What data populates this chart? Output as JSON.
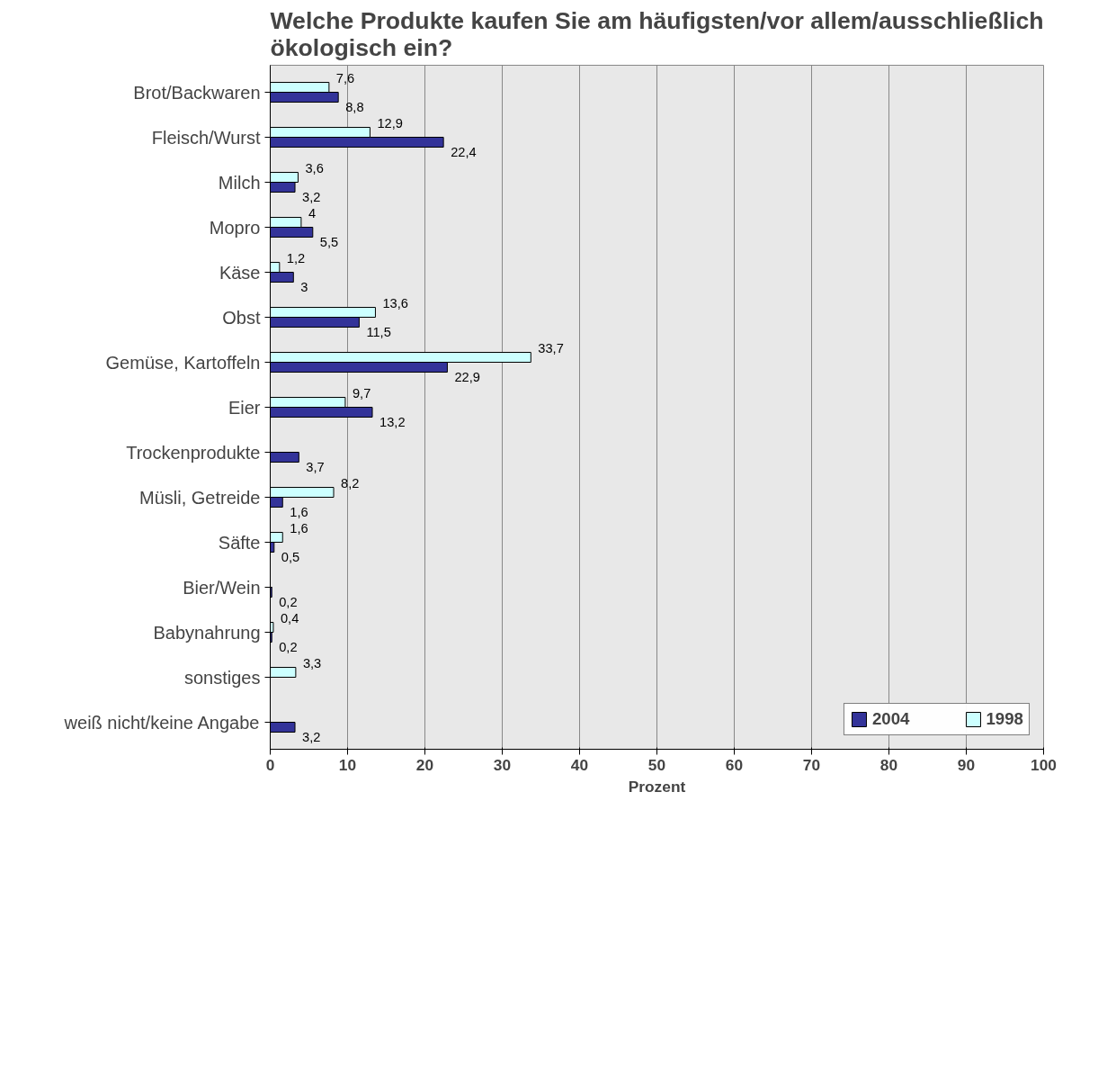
{
  "chart_data": {
    "type": "bar",
    "orientation": "horizontal",
    "title": "Welche Produkte kaufen Sie am häufigsten/vor allem/ausschließlich ökologisch ein?",
    "xlabel": "Prozent",
    "categories": [
      "Brot/Backwaren",
      "Fleisch/Wurst",
      "Milch",
      "Mopro",
      "Käse",
      "Obst",
      "Gemüse, Kartoffeln",
      "Eier",
      "Trockenprodukte",
      "Müsli, Getreide",
      "Säfte",
      "Bier/Wein",
      "Babynahrung",
      "sonstiges",
      "weiß nicht/keine Angabe"
    ],
    "series": [
      {
        "name": "2004",
        "color": "#333399",
        "values": [
          8.8,
          22.4,
          3.2,
          5.5,
          3,
          11.5,
          22.9,
          13.2,
          3.7,
          1.6,
          0.5,
          0.2,
          0.2,
          null,
          3.2
        ],
        "value_labels": [
          "8,8",
          "22,4",
          "3,2",
          "5,5",
          "3",
          "11,5",
          "22,9",
          "13,2",
          "3,7",
          "1,6",
          "0,5",
          "0,2",
          "0,2",
          null,
          "3,2"
        ]
      },
      {
        "name": "1998",
        "color": "#ccffff",
        "values": [
          7.6,
          12.9,
          3.6,
          4,
          1.2,
          13.6,
          33.7,
          9.7,
          null,
          8.2,
          1.6,
          null,
          0.4,
          3.3,
          null
        ],
        "value_labels": [
          "7,6",
          "12,9",
          "3,6",
          "4",
          "1,2",
          "13,6",
          "33,7",
          "9,7",
          null,
          "8,2",
          "1,6",
          null,
          "0,4",
          "3,3",
          null
        ]
      }
    ],
    "xlim": [
      0,
      100
    ],
    "xticks": [
      0,
      10,
      20,
      30,
      40,
      50,
      60,
      70,
      80,
      90,
      100
    ],
    "grid": "x",
    "legend": "bottom right"
  }
}
